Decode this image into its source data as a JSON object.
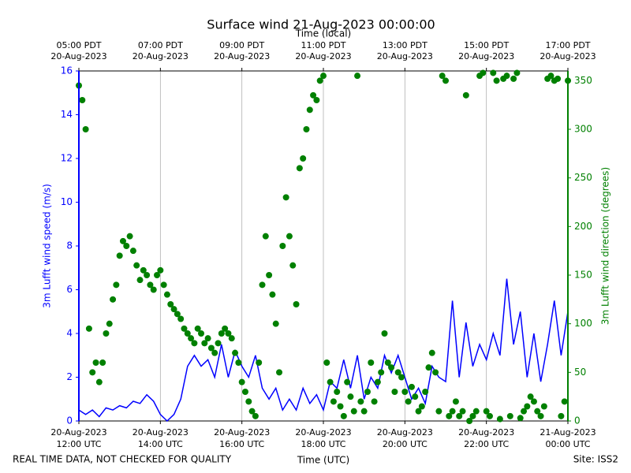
{
  "chart_data": {
    "type": "line",
    "title": "Surface wind 21-Aug-2023 00:00:00",
    "x_label": "Time (UTC)",
    "x2_label": "Time (local)",
    "y_label": "3m Lufft wind speed (m/s)",
    "y2_label": "3m Lufft wind direction (degrees)",
    "footer_left": "REAL TIME DATA, NOT CHECKED FOR QUALITY",
    "footer_right": "Site: ISS2",
    "grid": true,
    "xlim": [
      "2023-08-20 12:00",
      "2023-08-21 00:00"
    ],
    "xticks": [
      {
        "value": "2023-08-20 12:00",
        "label": [
          "20-Aug-2023",
          "12:00 UTC"
        ]
      },
      {
        "value": "2023-08-20 14:00",
        "label": [
          "20-Aug-2023",
          "14:00 UTC"
        ]
      },
      {
        "value": "2023-08-20 16:00",
        "label": [
          "20-Aug-2023",
          "16:00 UTC"
        ]
      },
      {
        "value": "2023-08-20 18:00",
        "label": [
          "20-Aug-2023",
          "18:00 UTC"
        ]
      },
      {
        "value": "2023-08-20 20:00",
        "label": [
          "20-Aug-2023",
          "20:00 UTC"
        ]
      },
      {
        "value": "2023-08-20 22:00",
        "label": [
          "20-Aug-2023",
          "22:00 UTC"
        ]
      },
      {
        "value": "2023-08-21 00:00",
        "label": [
          "21-Aug-2023",
          "00:00 UTC"
        ]
      }
    ],
    "x2ticks": [
      {
        "value": "2023-08-20 12:00",
        "label": [
          "05:00 PDT",
          "20-Aug-2023"
        ]
      },
      {
        "value": "2023-08-20 14:00",
        "label": [
          "07:00 PDT",
          "20-Aug-2023"
        ]
      },
      {
        "value": "2023-08-20 16:00",
        "label": [
          "09:00 PDT",
          "20-Aug-2023"
        ]
      },
      {
        "value": "2023-08-20 18:00",
        "label": [
          "11:00 PDT",
          "20-Aug-2023"
        ]
      },
      {
        "value": "2023-08-20 20:00",
        "label": [
          "13:00 PDT",
          "20-Aug-2023"
        ]
      },
      {
        "value": "2023-08-20 22:00",
        "label": [
          "15:00 PDT",
          "20-Aug-2023"
        ]
      },
      {
        "value": "2023-08-21 00:00",
        "label": [
          "17:00 PDT",
          "20-Aug-2023"
        ]
      }
    ],
    "ylim": [
      0,
      16
    ],
    "yticks": [
      0,
      2,
      4,
      6,
      8,
      10,
      12,
      14,
      16
    ],
    "y_color": "#0000ff",
    "y2lim": [
      0,
      360
    ],
    "y2ticks": [
      0,
      50,
      100,
      150,
      200,
      250,
      300,
      350
    ],
    "y2_color": "#008000",
    "series": [
      {
        "name": "3m Lufft wind speed",
        "type": "line",
        "color": "#0000ff",
        "x": [
          "2023-08-20 12:00",
          "2023-08-20 12:10",
          "2023-08-20 12:20",
          "2023-08-20 12:30",
          "2023-08-20 12:40",
          "2023-08-20 12:50",
          "2023-08-20 13:00",
          "2023-08-20 13:10",
          "2023-08-20 13:20",
          "2023-08-20 13:30",
          "2023-08-20 13:40",
          "2023-08-20 13:50",
          "2023-08-20 14:00",
          "2023-08-20 14:10",
          "2023-08-20 14:20",
          "2023-08-20 14:30",
          "2023-08-20 14:40",
          "2023-08-20 14:50",
          "2023-08-20 15:00",
          "2023-08-20 15:10",
          "2023-08-20 15:20",
          "2023-08-20 15:30",
          "2023-08-20 15:40",
          "2023-08-20 15:50",
          "2023-08-20 16:00",
          "2023-08-20 16:10",
          "2023-08-20 16:20",
          "2023-08-20 16:30",
          "2023-08-20 16:40",
          "2023-08-20 16:50",
          "2023-08-20 17:00",
          "2023-08-20 17:10",
          "2023-08-20 17:20",
          "2023-08-20 17:30",
          "2023-08-20 17:40",
          "2023-08-20 17:50",
          "2023-08-20 18:00",
          "2023-08-20 18:10",
          "2023-08-20 18:20",
          "2023-08-20 18:30",
          "2023-08-20 18:40",
          "2023-08-20 18:50",
          "2023-08-20 19:00",
          "2023-08-20 19:10",
          "2023-08-20 19:20",
          "2023-08-20 19:30",
          "2023-08-20 19:40",
          "2023-08-20 19:50",
          "2023-08-20 20:00",
          "2023-08-20 20:10",
          "2023-08-20 20:20",
          "2023-08-20 20:30",
          "2023-08-20 20:40",
          "2023-08-20 20:50",
          "2023-08-20 21:00",
          "2023-08-20 21:10",
          "2023-08-20 21:20",
          "2023-08-20 21:30",
          "2023-08-20 21:40",
          "2023-08-20 21:50",
          "2023-08-20 22:00",
          "2023-08-20 22:10",
          "2023-08-20 22:20",
          "2023-08-20 22:30",
          "2023-08-20 22:40",
          "2023-08-20 22:50",
          "2023-08-20 23:00",
          "2023-08-20 23:10",
          "2023-08-20 23:20",
          "2023-08-20 23:30",
          "2023-08-20 23:40",
          "2023-08-20 23:50",
          "2023-08-21 00:00"
        ],
        "values": [
          0.5,
          0.3,
          0.5,
          0.2,
          0.6,
          0.5,
          0.7,
          0.6,
          0.9,
          0.8,
          1.2,
          0.9,
          0.3,
          0,
          0.3,
          1.0,
          2.5,
          3.0,
          2.5,
          2.8,
          2.0,
          3.5,
          2.0,
          3.2,
          2.5,
          2.0,
          3.0,
          1.5,
          1.0,
          1.5,
          0.5,
          1.0,
          0.5,
          1.5,
          0.8,
          1.2,
          0.5,
          1.8,
          1.5,
          2.8,
          1.5,
          3.0,
          1.0,
          2.0,
          1.5,
          3.0,
          2.2,
          3.0,
          2.0,
          1.0,
          1.5,
          0.8,
          2.5,
          2.0,
          1.8,
          5.5,
          2.0,
          4.5,
          2.5,
          3.5,
          2.8,
          4.0,
          3.0,
          6.5,
          3.5,
          5.0,
          2.0,
          4.0,
          1.8,
          3.5,
          5.5,
          3.0,
          5.0
        ]
      },
      {
        "name": "3m Lufft wind direction",
        "type": "scatter",
        "axis": "y2",
        "color": "#008000",
        "x": [
          "2023-08-20 12:00",
          "2023-08-20 12:05",
          "2023-08-20 12:10",
          "2023-08-20 12:15",
          "2023-08-20 12:20",
          "2023-08-20 12:25",
          "2023-08-20 12:30",
          "2023-08-20 12:35",
          "2023-08-20 12:40",
          "2023-08-20 12:45",
          "2023-08-20 12:50",
          "2023-08-20 12:55",
          "2023-08-20 13:00",
          "2023-08-20 13:05",
          "2023-08-20 13:10",
          "2023-08-20 13:15",
          "2023-08-20 13:20",
          "2023-08-20 13:25",
          "2023-08-20 13:30",
          "2023-08-20 13:35",
          "2023-08-20 13:40",
          "2023-08-20 13:45",
          "2023-08-20 13:50",
          "2023-08-20 13:55",
          "2023-08-20 14:00",
          "2023-08-20 14:05",
          "2023-08-20 14:10",
          "2023-08-20 14:15",
          "2023-08-20 14:20",
          "2023-08-20 14:25",
          "2023-08-20 14:30",
          "2023-08-20 14:35",
          "2023-08-20 14:40",
          "2023-08-20 14:45",
          "2023-08-20 14:50",
          "2023-08-20 14:55",
          "2023-08-20 15:00",
          "2023-08-20 15:05",
          "2023-08-20 15:10",
          "2023-08-20 15:15",
          "2023-08-20 15:20",
          "2023-08-20 15:25",
          "2023-08-20 15:30",
          "2023-08-20 15:35",
          "2023-08-20 15:40",
          "2023-08-20 15:45",
          "2023-08-20 15:50",
          "2023-08-20 15:55",
          "2023-08-20 16:00",
          "2023-08-20 16:05",
          "2023-08-20 16:10",
          "2023-08-20 16:15",
          "2023-08-20 16:20",
          "2023-08-20 16:25",
          "2023-08-20 16:30",
          "2023-08-20 16:35",
          "2023-08-20 16:40",
          "2023-08-20 16:45",
          "2023-08-20 16:50",
          "2023-08-20 16:55",
          "2023-08-20 17:00",
          "2023-08-20 17:05",
          "2023-08-20 17:10",
          "2023-08-20 17:15",
          "2023-08-20 17:20",
          "2023-08-20 17:25",
          "2023-08-20 17:30",
          "2023-08-20 17:35",
          "2023-08-20 17:40",
          "2023-08-20 17:45",
          "2023-08-20 17:50",
          "2023-08-20 17:55",
          "2023-08-20 18:00",
          "2023-08-20 18:05",
          "2023-08-20 18:10",
          "2023-08-20 18:15",
          "2023-08-20 18:20",
          "2023-08-20 18:25",
          "2023-08-20 18:30",
          "2023-08-20 18:35",
          "2023-08-20 18:40",
          "2023-08-20 18:45",
          "2023-08-20 18:50",
          "2023-08-20 18:55",
          "2023-08-20 19:00",
          "2023-08-20 19:05",
          "2023-08-20 19:10",
          "2023-08-20 19:15",
          "2023-08-20 19:20",
          "2023-08-20 19:25",
          "2023-08-20 19:30",
          "2023-08-20 19:35",
          "2023-08-20 19:40",
          "2023-08-20 19:45",
          "2023-08-20 19:50",
          "2023-08-20 19:55",
          "2023-08-20 20:00",
          "2023-08-20 20:05",
          "2023-08-20 20:10",
          "2023-08-20 20:15",
          "2023-08-20 20:20",
          "2023-08-20 20:25",
          "2023-08-20 20:30",
          "2023-08-20 20:35",
          "2023-08-20 20:40",
          "2023-08-20 20:45",
          "2023-08-20 20:50",
          "2023-08-20 20:55",
          "2023-08-20 21:00",
          "2023-08-20 21:05",
          "2023-08-20 21:10",
          "2023-08-20 21:15",
          "2023-08-20 21:20",
          "2023-08-20 21:25",
          "2023-08-20 21:30",
          "2023-08-20 21:35",
          "2023-08-20 21:40",
          "2023-08-20 21:45",
          "2023-08-20 21:50",
          "2023-08-20 21:55",
          "2023-08-20 22:00",
          "2023-08-20 22:05",
          "2023-08-20 22:10",
          "2023-08-20 22:15",
          "2023-08-20 22:20",
          "2023-08-20 22:25",
          "2023-08-20 22:30",
          "2023-08-20 22:35",
          "2023-08-20 22:40",
          "2023-08-20 22:45",
          "2023-08-20 22:50",
          "2023-08-20 22:55",
          "2023-08-20 23:00",
          "2023-08-20 23:05",
          "2023-08-20 23:10",
          "2023-08-20 23:15",
          "2023-08-20 23:20",
          "2023-08-20 23:25",
          "2023-08-20 23:30",
          "2023-08-20 23:35",
          "2023-08-20 23:40",
          "2023-08-20 23:45",
          "2023-08-20 23:50",
          "2023-08-20 23:55",
          "2023-08-21 00:00"
        ],
        "values": [
          345,
          330,
          300,
          95,
          50,
          60,
          40,
          60,
          90,
          100,
          125,
          140,
          170,
          185,
          180,
          190,
          175,
          160,
          145,
          155,
          150,
          140,
          135,
          150,
          155,
          140,
          130,
          120,
          115,
          110,
          105,
          95,
          90,
          85,
          80,
          95,
          90,
          80,
          85,
          75,
          70,
          80,
          90,
          95,
          90,
          85,
          70,
          60,
          40,
          30,
          20,
          10,
          5,
          60,
          140,
          190,
          150,
          130,
          100,
          50,
          180,
          230,
          190,
          160,
          120,
          260,
          270,
          300,
          320,
          335,
          330,
          350,
          355,
          60,
          40,
          20,
          30,
          15,
          5,
          40,
          25,
          10,
          355,
          20,
          10,
          30,
          60,
          20,
          40,
          50,
          90,
          60,
          55,
          30,
          50,
          45,
          30,
          20,
          35,
          25,
          10,
          15,
          30,
          55,
          70,
          50,
          10,
          355,
          350,
          5,
          10,
          20,
          5,
          10,
          335,
          0,
          5,
          10,
          355,
          358,
          10,
          5,
          358,
          350,
          2,
          352,
          355,
          5,
          352,
          358,
          3,
          10,
          15,
          25,
          20,
          10,
          5,
          15,
          352,
          355,
          350,
          352,
          5,
          20,
          350
        ]
      }
    ]
  }
}
